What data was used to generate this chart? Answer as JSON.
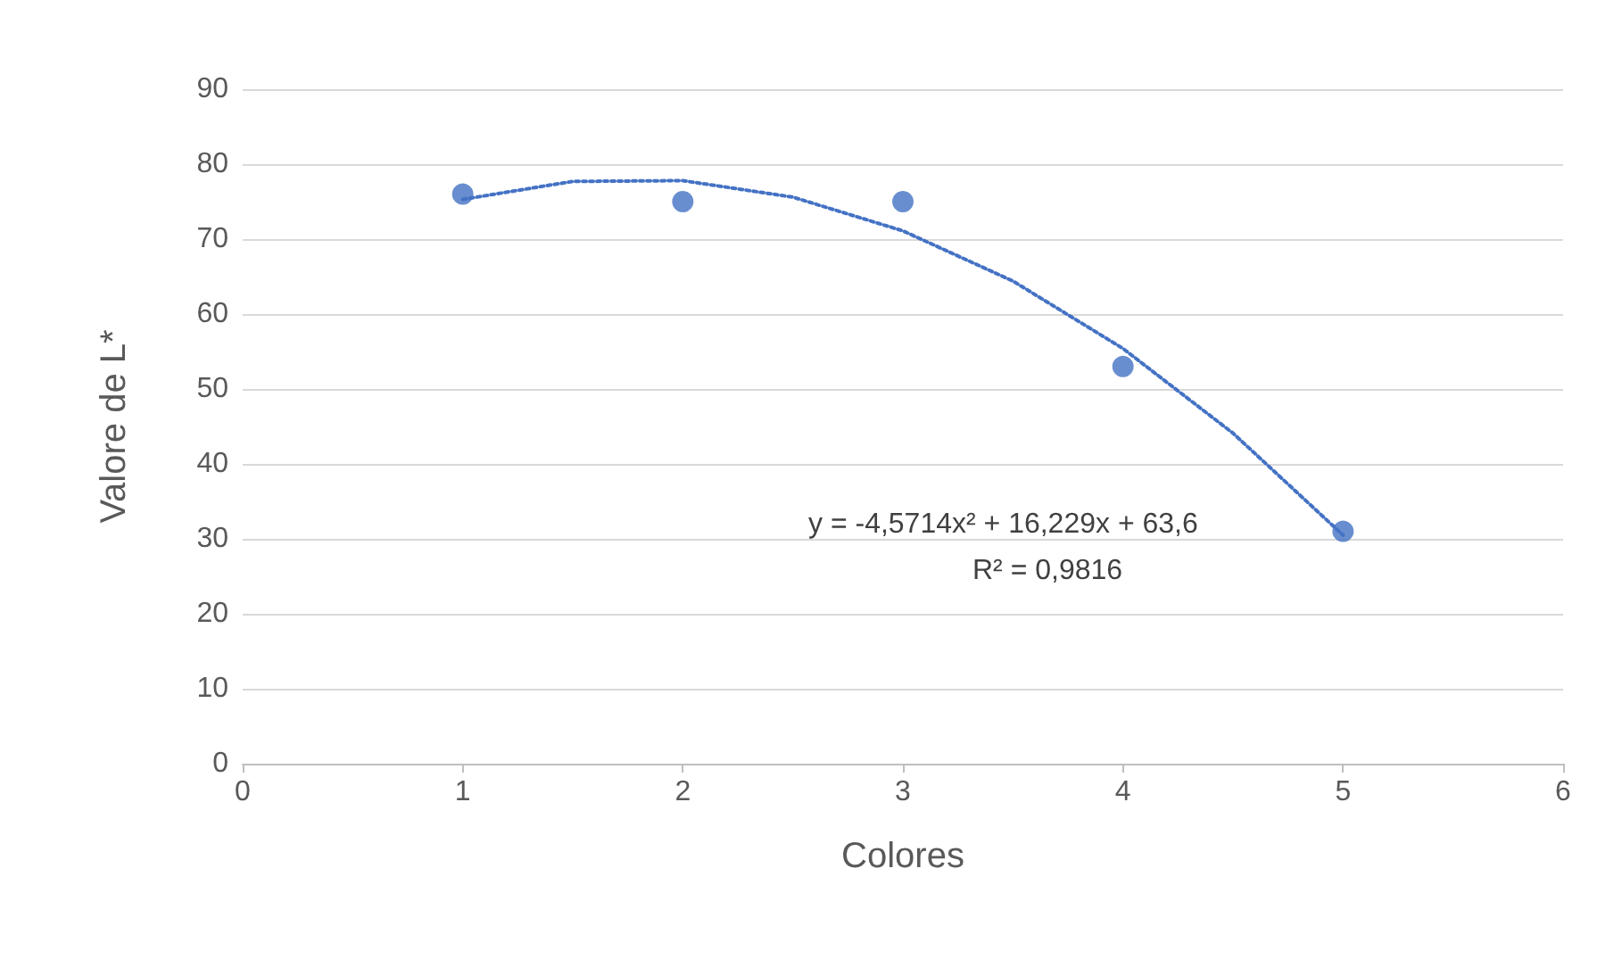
{
  "chart_data": {
    "type": "scatter",
    "xlabel": "Colores",
    "ylabel": "Valore de L*",
    "xlim": [
      0,
      6
    ],
    "xticks": [
      0,
      1,
      2,
      3,
      4,
      5,
      6
    ],
    "ylim": [
      0,
      90
    ],
    "yticks": [
      0,
      10,
      20,
      30,
      40,
      50,
      60,
      70,
      80,
      90
    ],
    "grid": "y",
    "marker": "circle",
    "series": [
      {
        "color": "#4472c4",
        "x": [
          1,
          2,
          3,
          4,
          5
        ],
        "values": [
          76,
          75,
          75,
          53,
          31
        ]
      },
      {
        "type": "line",
        "color": "#4472c4",
        "line_style": "dotted",
        "marker": "none",
        "x": [
          1,
          1.5,
          2,
          2.5,
          3,
          3.5,
          4,
          4.5,
          5
        ],
        "values": [
          75.3,
          77.7,
          77.8,
          75.6,
          71.1,
          64.4,
          55.4,
          44.1,
          30.5
        ]
      }
    ],
    "annotations": [
      "y = -4,5714x² + 16,229x + 63,6",
      "R² = 0,9816"
    ]
  }
}
